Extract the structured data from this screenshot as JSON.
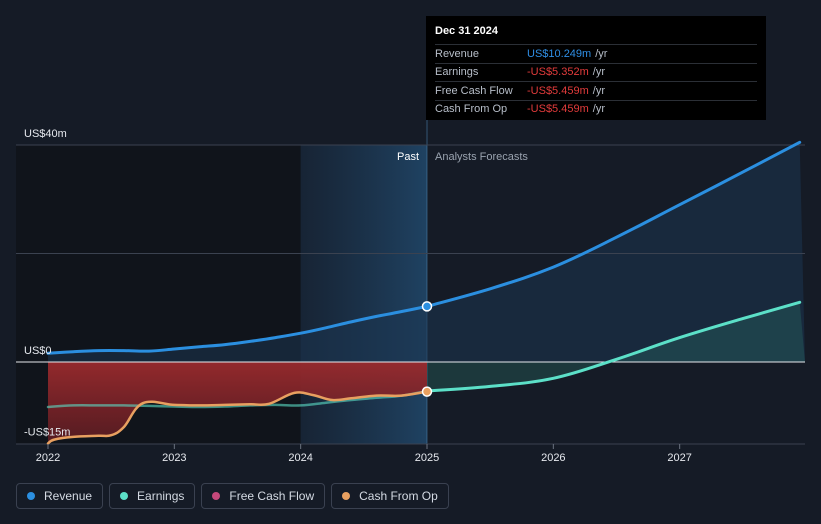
{
  "tooltip": {
    "date": "Dec 31 2024",
    "rows": [
      {
        "label": "Revenue",
        "value": "US$10.249m",
        "unit": "/yr",
        "color": "#2f8fe6"
      },
      {
        "label": "Earnings",
        "value": "-US$5.352m",
        "unit": "/yr",
        "color": "#e23b3b"
      },
      {
        "label": "Free Cash Flow",
        "value": "-US$5.459m",
        "unit": "/yr",
        "color": "#e23b3b"
      },
      {
        "label": "Cash From Op",
        "value": "-US$5.459m",
        "unit": "/yr",
        "color": "#e23b3b"
      }
    ]
  },
  "legend": [
    {
      "label": "Revenue",
      "color": "#2b8fe0"
    },
    {
      "label": "Earnings",
      "color": "#5ce0c8"
    },
    {
      "label": "Free Cash Flow",
      "color": "#c4487a"
    },
    {
      "label": "Cash From Op",
      "color": "#e8a060"
    }
  ],
  "chart_data": {
    "type": "line",
    "y_tick_labels": [
      "US$40m",
      "US$0",
      "-US$15m"
    ],
    "ylim": [
      -15,
      40
    ],
    "x_tick_labels": [
      "2022",
      "2023",
      "2024",
      "2025",
      "2026",
      "2027"
    ],
    "xlim": [
      2022.0,
      2027.95
    ],
    "past_label": "Past",
    "forecast_label": "Analysts Forecasts",
    "forecast_start": 2025.0,
    "highlight_start": 2024.0,
    "series": [
      {
        "name": "Revenue",
        "color": "#2b8fe0",
        "x": [
          2022.0,
          2022.2,
          2022.4,
          2022.6,
          2022.8,
          2023.0,
          2023.2,
          2023.4,
          2023.6,
          2023.8,
          2024.0,
          2024.2,
          2024.4,
          2024.6,
          2024.8,
          2025.0
        ],
        "y": [
          1.6,
          1.9,
          2.1,
          2.1,
          2.0,
          2.4,
          2.8,
          3.2,
          3.8,
          4.5,
          5.3,
          6.3,
          7.4,
          8.4,
          9.3,
          10.249
        ]
      },
      {
        "name": "Revenue forecast",
        "color": "#2b8fe0",
        "x": [
          2025.0,
          2025.5,
          2026.0,
          2026.5,
          2027.0,
          2027.5,
          2027.95
        ],
        "y": [
          10.249,
          13.5,
          17.5,
          23.0,
          29.0,
          35.0,
          40.5
        ]
      },
      {
        "name": "Earnings",
        "color": "#5ce0c8",
        "x": [
          2022.0,
          2022.2,
          2022.4,
          2022.6,
          2022.8,
          2023.0,
          2023.2,
          2023.4,
          2023.6,
          2023.8,
          2024.0,
          2024.2,
          2024.4,
          2024.6,
          2024.8,
          2025.0
        ],
        "y": [
          -8.3,
          -8.0,
          -8.0,
          -8.0,
          -8.1,
          -8.2,
          -8.3,
          -8.2,
          -8.0,
          -7.9,
          -8.0,
          -7.5,
          -7.0,
          -6.6,
          -6.2,
          -5.352
        ]
      },
      {
        "name": "Earnings forecast",
        "color": "#5ce0c8",
        "x": [
          2025.0,
          2025.5,
          2026.0,
          2026.5,
          2027.0,
          2027.5,
          2027.95
        ],
        "y": [
          -5.352,
          -4.5,
          -3.0,
          0.5,
          4.5,
          8.0,
          11.0
        ]
      },
      {
        "name": "Free Cash Flow",
        "color": "#c4487a",
        "x": [
          2022.0,
          2022.2,
          2022.4,
          2022.6,
          2022.8,
          2023.0,
          2023.2,
          2023.4,
          2023.6,
          2023.8,
          2024.0,
          2024.2,
          2024.4,
          2024.6,
          2024.8,
          2025.0
        ],
        "y": [
          -15.0,
          -13.8,
          -13.6,
          -12.5,
          -6.5,
          -6.7,
          -6.8,
          -6.7,
          -6.6,
          -5.9,
          -5.4,
          -6.3,
          -6.0,
          -5.6,
          -5.4,
          -5.459
        ]
      },
      {
        "name": "Cash From Op",
        "color": "#e8a060",
        "x": [
          2022.0,
          2022.05,
          2022.2,
          2022.4,
          2022.5,
          2022.6,
          2022.75,
          2023.0,
          2023.2,
          2023.4,
          2023.6,
          2023.75,
          2023.95,
          2024.1,
          2024.25,
          2024.4,
          2024.6,
          2024.8,
          2025.0
        ],
        "y": [
          -15.0,
          -14.3,
          -13.8,
          -13.6,
          -13.5,
          -12.0,
          -7.6,
          -7.9,
          -8.0,
          -7.9,
          -7.8,
          -7.7,
          -5.7,
          -6.1,
          -7.0,
          -6.7,
          -6.2,
          -6.2,
          -5.459
        ]
      }
    ],
    "markers": [
      {
        "series": "Revenue",
        "x": 2025.0,
        "y": 10.249,
        "color": "#2b8fe0"
      },
      {
        "series": "Cash From Op",
        "x": 2025.0,
        "y": -5.459,
        "color": "#e8a060"
      }
    ]
  }
}
